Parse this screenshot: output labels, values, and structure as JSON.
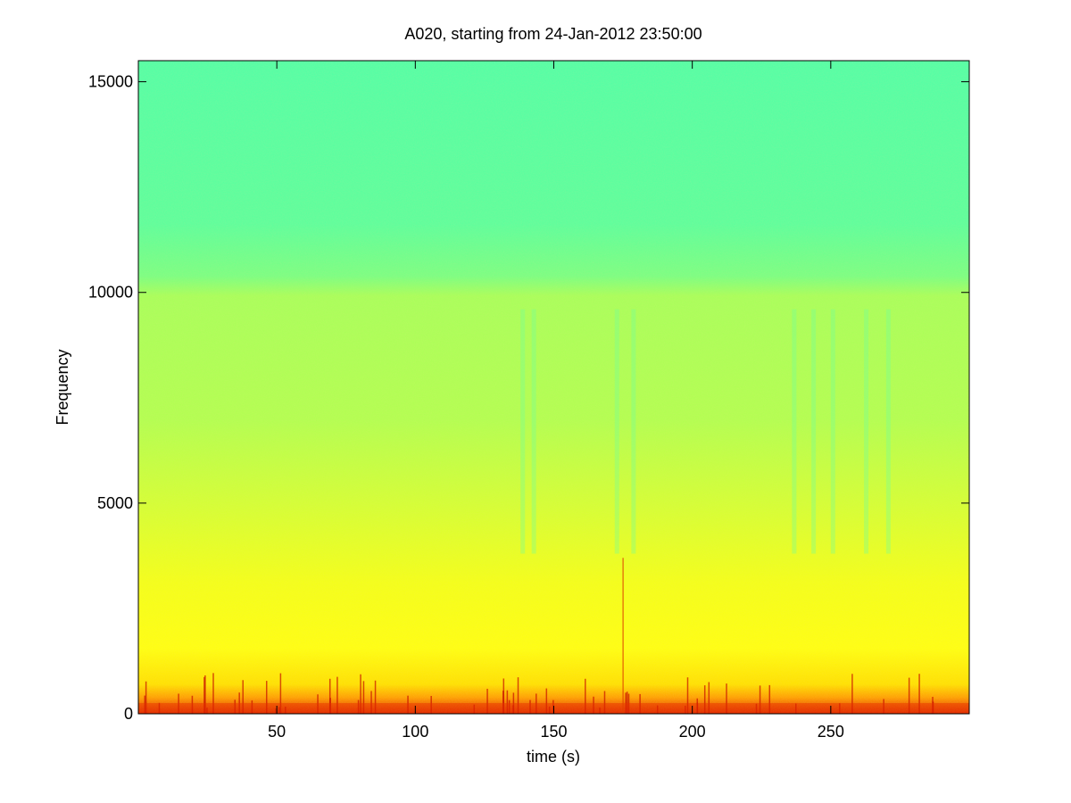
{
  "chart_data": {
    "type": "spectrogram",
    "title": "A020, starting from 24-Jan-2012 23:50:00",
    "x_label": "time (s)",
    "y_label": "Frequency",
    "xlim": [
      0,
      300
    ],
    "xticks": [
      50,
      100,
      150,
      200,
      250
    ],
    "ylim": [
      0,
      15500
    ],
    "yticks": [
      0,
      5000,
      10000,
      15000
    ]
  }
}
